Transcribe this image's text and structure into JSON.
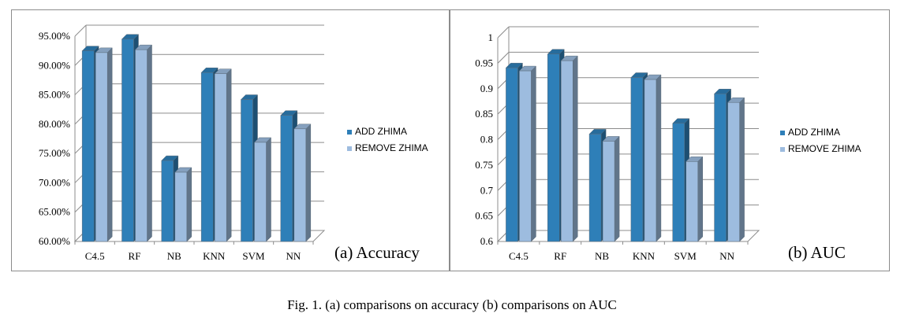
{
  "chart_data": [
    {
      "type": "bar",
      "panel_label": "(a) Accuracy",
      "categories": [
        "C4.5",
        "RF",
        "NB",
        "KNN",
        "SVM",
        "NN"
      ],
      "series": [
        {
          "name": "ADD ZHIMA",
          "values": [
            92.5,
            94.5,
            73.8,
            88.8,
            84.2,
            81.5
          ],
          "color": "#2e7fb8"
        },
        {
          "name": "REMOVE ZHIMA",
          "values": [
            92.2,
            92.7,
            71.8,
            88.6,
            76.9,
            79.2
          ],
          "color": "#9dbcdf"
        }
      ],
      "y_ticks": [
        "60.00%",
        "65.00%",
        "70.00%",
        "75.00%",
        "80.00%",
        "85.00%",
        "90.00%",
        "95.00%"
      ],
      "ylim": [
        60,
        95
      ],
      "legend_position": "right",
      "grid": true
    },
    {
      "type": "bar",
      "panel_label": "(b) AUC",
      "categories": [
        "C4.5",
        "RF",
        "NB",
        "KNN",
        "SVM",
        "NN"
      ],
      "series": [
        {
          "name": "ADD ZHIMA",
          "values": [
            0.941,
            0.968,
            0.811,
            0.922,
            0.832,
            0.89
          ],
          "color": "#2e7fb8"
        },
        {
          "name": "REMOVE ZHIMA",
          "values": [
            0.935,
            0.955,
            0.797,
            0.918,
            0.757,
            0.873
          ],
          "color": "#9dbcdf"
        }
      ],
      "y_ticks": [
        "0.6",
        "0.65",
        "0.7",
        "0.75",
        "0.8",
        "0.85",
        "0.9",
        "0.95",
        "1"
      ],
      "ylim": [
        0.6,
        1.0
      ],
      "legend_position": "right",
      "grid": true
    }
  ],
  "caption": "Fig. 1. (a) comparisons on accuracy  (b) comparisons on AUC"
}
